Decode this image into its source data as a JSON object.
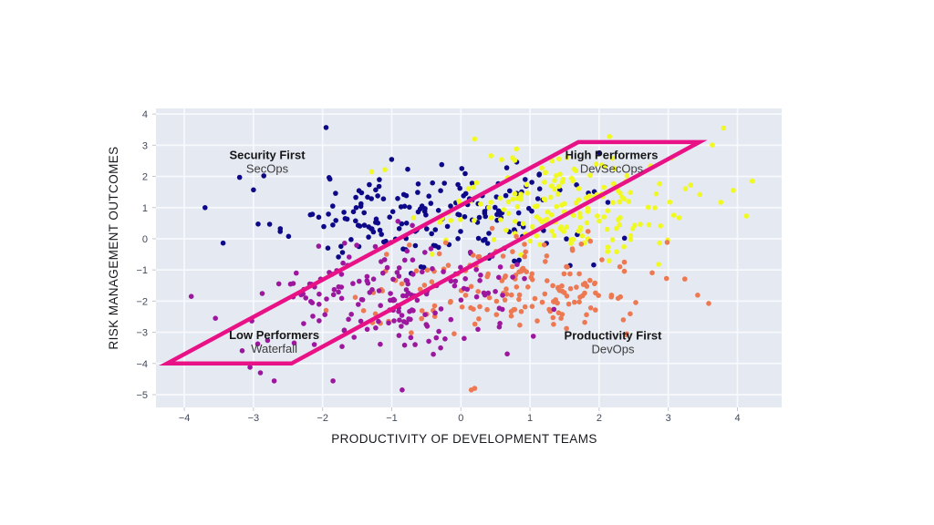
{
  "chart_data": {
    "type": "scatter",
    "title": "",
    "xlabel": "PRODUCTIVITY OF DEVELOPMENT TEAMS",
    "ylabel": "RISK MANAGEMENT OUTCOMES",
    "xlim": [
      -4.41,
      4.64
    ],
    "ylim": [
      -5.41,
      4.18
    ],
    "xticks": [
      -4,
      -3,
      -2,
      -1,
      0,
      1,
      2,
      3,
      4
    ],
    "yticks": [
      -5,
      -4,
      -3,
      -2,
      -1,
      0,
      1,
      2,
      3,
      4
    ],
    "grid": true,
    "legend": "none",
    "plot_background": "#e5e9f2",
    "gridline_color": "#f7f9fc",
    "tick_color": "#c2c8d4",
    "point_radius": 2.8,
    "clusters": [
      {
        "name": "Security First / SecOps",
        "color": "#0d0887",
        "center": [
          -0.45,
          0.8
        ],
        "std": [
          1.05,
          0.78
        ],
        "count": 190,
        "seed": 11,
        "extra_points": [
          [
            -1.95,
            3.57
          ],
          [
            -3.7,
            1.0
          ],
          [
            -3.2,
            1.97
          ],
          [
            -3.0,
            1.57
          ],
          [
            -2.85,
            2.02
          ]
        ]
      },
      {
        "name": "High Performers / DevSecOps",
        "color": "#f0f921",
        "center": [
          1.55,
          1.1
        ],
        "std": [
          0.85,
          0.78
        ],
        "count": 185,
        "seed": 22,
        "extra_points": [
          [
            3.8,
            3.55
          ],
          [
            3.76,
            1.17
          ],
          [
            4.13,
            0.73
          ],
          [
            2.15,
            3.28
          ],
          [
            0.2,
            3.2
          ],
          [
            3.05,
            2.6
          ]
        ]
      },
      {
        "name": "Productivity First / DevOps",
        "color": "#ed7953",
        "center": [
          0.8,
          -1.55
        ],
        "std": [
          1.0,
          0.85
        ],
        "count": 175,
        "seed": 33,
        "extra_points": [
          [
            2.4,
            -3.05
          ],
          [
            0.2,
            -4.8
          ],
          [
            2.35,
            -2.6
          ],
          [
            -1.95,
            -2.3
          ],
          [
            0.15,
            -4.85
          ],
          [
            2.3,
            -0.9
          ]
        ]
      },
      {
        "name": "Low Performers / Waterfall",
        "color": "#9c179e",
        "center": [
          -1.1,
          -1.8
        ],
        "std": [
          1.0,
          0.9
        ],
        "count": 175,
        "seed": 44,
        "extra_points": [
          [
            -3.9,
            -1.85
          ],
          [
            -3.55,
            -2.55
          ],
          [
            -3.05,
            -4.12
          ],
          [
            -2.9,
            -4.3
          ],
          [
            -2.7,
            -4.56
          ],
          [
            -1.85,
            -4.56
          ],
          [
            -0.85,
            -4.85
          ]
        ]
      }
    ],
    "band": {
      "color": "#e81286",
      "stroke_width": 4.5,
      "polygon": [
        [
          -4.25,
          -4.0
        ],
        [
          1.7,
          3.1
        ],
        [
          3.45,
          3.1
        ],
        [
          -2.45,
          -4.0
        ]
      ]
    },
    "annotations": [
      {
        "title": "Security First",
        "subtitle": "SecOps",
        "x": -2.8,
        "y_title": 2.66,
        "y_subtitle": 2.22
      },
      {
        "title": "High Performers",
        "subtitle": "DevSecOps",
        "x": 2.18,
        "y_title": 2.66,
        "y_subtitle": 2.22
      },
      {
        "title": "Low Performers",
        "subtitle": "Waterfall",
        "x": -2.7,
        "y_title": -3.12,
        "y_subtitle": -3.55
      },
      {
        "title": "Productivity First",
        "subtitle": "DevOps",
        "x": 2.2,
        "y_title": -3.13,
        "y_subtitle": -3.57
      }
    ]
  }
}
